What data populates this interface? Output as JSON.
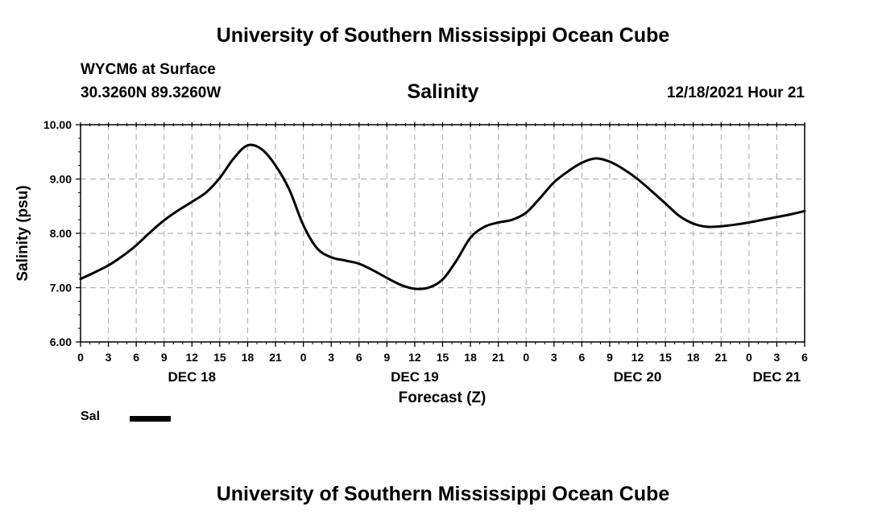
{
  "header": {
    "main_title": "University of Southern Mississippi Ocean Cube",
    "station_name": "WYCM6 at Surface",
    "station_coords": "30.3260N  89.3260W",
    "chart_title": "Salinity",
    "valid_time": "12/18/2021 Hour 21"
  },
  "footer": {
    "title": "University of Southern Mississippi Ocean Cube"
  },
  "legend": {
    "entries": [
      {
        "label": "Sal",
        "color": "#000000"
      }
    ]
  },
  "chart_data": {
    "type": "line",
    "title": "Salinity",
    "xlabel": "Forecast (Z)",
    "ylabel": "Salinity (psu)",
    "grid": true,
    "xlim": [
      0,
      78
    ],
    "ylim": [
      6.0,
      10.0
    ],
    "y_ticks": [
      6.0,
      7.0,
      8.0,
      9.0,
      10.0
    ],
    "y_tick_labels": [
      "6.00",
      "7.00",
      "8.00",
      "9.00",
      "10.00"
    ],
    "x_tick_hours": [
      0,
      3,
      6,
      9,
      12,
      15,
      18,
      21,
      24,
      27,
      30,
      33,
      36,
      39,
      42,
      45,
      48,
      51,
      54,
      57,
      60,
      63,
      66,
      69,
      72,
      75,
      78
    ],
    "x_tick_labels": [
      "0",
      "3",
      "6",
      "9",
      "12",
      "15",
      "18",
      "21",
      "0",
      "3",
      "6",
      "9",
      "12",
      "15",
      "18",
      "21",
      "0",
      "3",
      "6",
      "9",
      "12",
      "15",
      "18",
      "21",
      "0",
      "3",
      "6"
    ],
    "date_labels": [
      {
        "hour": 12,
        "label": "DEC 18"
      },
      {
        "hour": 36,
        "label": "DEC 19"
      },
      {
        "hour": 60,
        "label": "DEC 20"
      },
      {
        "hour": 75,
        "label": "DEC 21"
      }
    ],
    "series": [
      {
        "name": "Sal",
        "color": "#000000",
        "x": [
          0,
          1.5,
          3,
          4.5,
          6,
          7.5,
          9,
          10.5,
          12,
          13.5,
          15,
          16.5,
          18,
          19.5,
          21,
          22.5,
          24,
          25.5,
          27,
          28.5,
          30,
          31.5,
          33,
          34.5,
          36,
          37.5,
          39,
          40.5,
          42,
          43.5,
          45,
          46.5,
          48,
          49.5,
          51,
          52.5,
          54,
          55.5,
          57,
          58.5,
          60,
          61.5,
          63,
          64.5,
          66,
          67.5,
          69,
          70.5,
          72,
          73.5,
          75,
          76.5,
          78
        ],
        "values": [
          7.16,
          7.28,
          7.41,
          7.58,
          7.78,
          8.02,
          8.24,
          8.42,
          8.58,
          8.75,
          9.02,
          9.38,
          9.62,
          9.55,
          9.25,
          8.8,
          8.15,
          7.72,
          7.56,
          7.5,
          7.44,
          7.32,
          7.18,
          7.05,
          6.98,
          7.0,
          7.15,
          7.5,
          7.92,
          8.12,
          8.2,
          8.25,
          8.38,
          8.65,
          8.94,
          9.14,
          9.3,
          9.38,
          9.32,
          9.18,
          9.0,
          8.78,
          8.55,
          8.32,
          8.18,
          8.12,
          8.13,
          8.16,
          8.2,
          8.25,
          8.3,
          8.35,
          8.41
        ]
      }
    ]
  }
}
